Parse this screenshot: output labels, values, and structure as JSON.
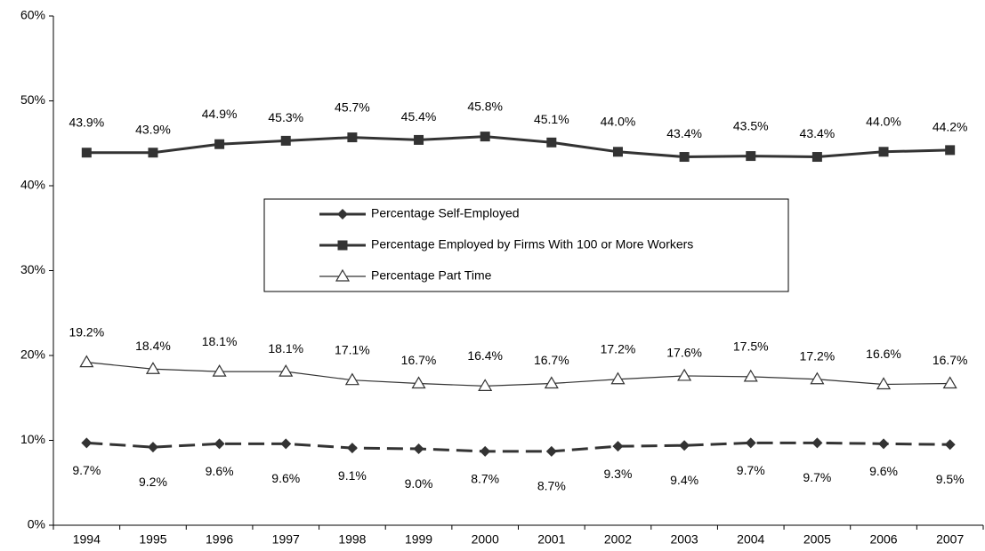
{
  "chart_data": {
    "type": "line",
    "categories": [
      "1994",
      "1995",
      "1996",
      "1997",
      "1998",
      "1999",
      "2000",
      "2001",
      "2002",
      "2003",
      "2004",
      "2005",
      "2006",
      "2007"
    ],
    "series": [
      {
        "name": "Percentage Self-Employed",
        "color": "#333333",
        "marker": "diamond",
        "dash": true,
        "values": [
          9.7,
          9.2,
          9.6,
          9.6,
          9.1,
          9.0,
          8.7,
          8.7,
          9.3,
          9.4,
          9.7,
          9.7,
          9.6,
          9.5
        ],
        "value_labels": [
          "9.7%",
          "9.2%",
          "9.6%",
          "9.6%",
          "9.1%",
          "9.0%",
          "8.7%",
          "8.7%",
          "9.3%",
          "9.4%",
          "9.7%",
          "9.7%",
          "9.6%",
          "9.5%"
        ]
      },
      {
        "name": "Percentage Employed by Firms With 100 or More Workers",
        "color": "#333333",
        "marker": "square",
        "dash": false,
        "values": [
          43.9,
          43.9,
          44.9,
          45.3,
          45.7,
          45.4,
          45.8,
          45.1,
          44.0,
          43.4,
          43.5,
          43.4,
          44.0,
          44.2
        ],
        "value_labels": [
          "43.9%",
          "43.9%",
          "44.9%",
          "45.3%",
          "45.7%",
          "45.4%",
          "45.8%",
          "45.1%",
          "44.0%",
          "43.4%",
          "43.5%",
          "43.4%",
          "44.0%",
          "44.2%"
        ]
      },
      {
        "name": "Percentage Part Time",
        "color": "#333333",
        "marker": "triangle",
        "dash": false,
        "values": [
          19.2,
          18.4,
          18.1,
          18.1,
          17.1,
          16.7,
          16.4,
          16.7,
          17.2,
          17.6,
          17.5,
          17.2,
          16.6,
          16.7
        ],
        "value_labels": [
          "19.2%",
          "18.4%",
          "18.1%",
          "18.1%",
          "17.1%",
          "16.7%",
          "16.4%",
          "16.7%",
          "17.2%",
          "17.6%",
          "17.5%",
          "17.2%",
          "16.6%",
          "16.7%"
        ]
      }
    ],
    "ylim": [
      0,
      60
    ],
    "yticks": [
      {
        "value": 0,
        "label": "0%"
      },
      {
        "value": 10,
        "label": "10%"
      },
      {
        "value": 20,
        "label": "20%"
      },
      {
        "value": 30,
        "label": "30%"
      },
      {
        "value": 40,
        "label": "40%"
      },
      {
        "value": 50,
        "label": "50%"
      },
      {
        "value": 60,
        "label": "60%"
      }
    ],
    "grid": false,
    "legend": "center"
  }
}
